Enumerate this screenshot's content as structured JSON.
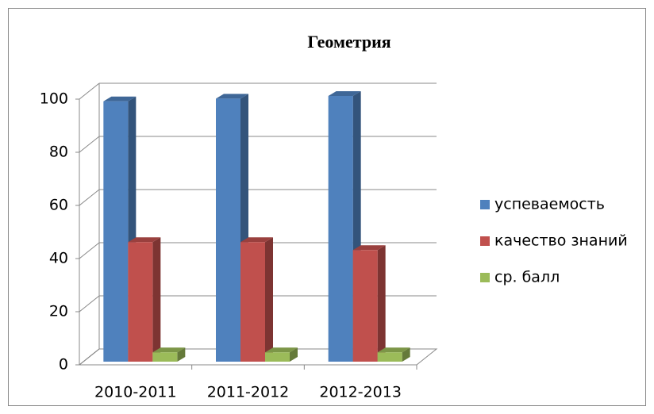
{
  "chart_data": {
    "type": "bar3d",
    "title": "Геометрия",
    "categories": [
      "2010-2011",
      "2011-2012",
      "2012-2013"
    ],
    "series": [
      {
        "name": "успеваемость",
        "color": "#4f81bd",
        "values": [
          98,
          99,
          100
        ]
      },
      {
        "name": "качество знаний",
        "color": "#c0504d",
        "values": [
          45,
          45,
          42
        ]
      },
      {
        "name": "ср. балл",
        "color": "#9bbb59",
        "values": [
          3.5,
          3.5,
          3.5
        ]
      }
    ],
    "ylim": [
      0,
      100
    ],
    "yticks": [
      0,
      20,
      40,
      60,
      80,
      100
    ],
    "grid": true,
    "legend": "right"
  }
}
